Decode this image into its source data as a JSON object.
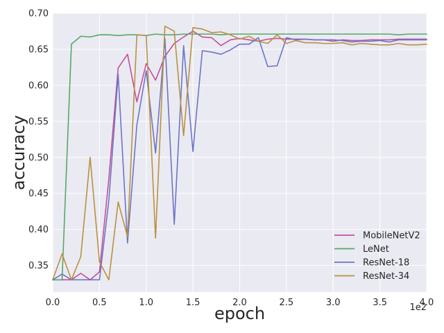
{
  "chart_data": {
    "type": "line",
    "title": "",
    "xlabel": "epoch",
    "ylabel": "accuracy",
    "x_offset_label": "1e2",
    "xlim": [
      0,
      4.0
    ],
    "ylim": [
      0.313,
      0.7
    ],
    "xticks": [
      "0.0",
      "0.5",
      "1.0",
      "1.5",
      "2.0",
      "2.5",
      "3.0",
      "3.5",
      "4.0"
    ],
    "yticks": [
      "0.35",
      "0.40",
      "0.45",
      "0.50",
      "0.55",
      "0.60",
      "0.65",
      "0.70"
    ],
    "grid": true,
    "legend_position": "lower-right",
    "x": [
      0.0,
      0.1,
      0.2,
      0.3,
      0.4,
      0.5,
      0.6,
      0.7,
      0.8,
      0.9,
      1.0,
      1.1,
      1.2,
      1.3,
      1.4,
      1.5,
      1.6,
      1.7,
      1.8,
      1.9,
      2.0,
      2.1,
      2.2,
      2.3,
      2.4,
      2.5,
      2.6,
      2.7,
      2.8,
      2.9,
      3.0,
      3.1,
      3.2,
      3.3,
      3.4,
      3.5,
      3.6,
      3.7,
      3.8,
      3.9,
      4.0
    ],
    "series": [
      {
        "name": "MobileNetV2",
        "color": "#c44e9c",
        "values": [
          0.33,
          0.33,
          0.33,
          0.339,
          0.33,
          0.341,
          0.47,
          0.624,
          0.643,
          0.577,
          0.63,
          0.607,
          0.64,
          0.658,
          0.667,
          0.675,
          0.667,
          0.666,
          0.655,
          0.663,
          0.665,
          0.663,
          0.661,
          0.664,
          0.665,
          0.664,
          0.664,
          0.664,
          0.663,
          0.663,
          0.661,
          0.663,
          0.662,
          0.662,
          0.663,
          0.663,
          0.663,
          0.664,
          0.664,
          0.664,
          0.664
        ]
      },
      {
        "name": "LeNet",
        "color": "#55a868",
        "values": [
          0.33,
          0.33,
          0.657,
          0.668,
          0.667,
          0.67,
          0.67,
          0.669,
          0.67,
          0.67,
          0.669,
          0.671,
          0.67,
          0.67,
          0.671,
          0.671,
          0.671,
          0.671,
          0.67,
          0.671,
          0.671,
          0.671,
          0.671,
          0.671,
          0.671,
          0.671,
          0.671,
          0.671,
          0.671,
          0.671,
          0.671,
          0.671,
          0.671,
          0.671,
          0.671,
          0.671,
          0.671,
          0.67,
          0.671,
          0.671,
          0.671
        ]
      },
      {
        "name": "ResNet-18",
        "color": "#6c74c8",
        "values": [
          0.33,
          0.338,
          0.33,
          0.33,
          0.33,
          0.33,
          0.44,
          0.615,
          0.381,
          0.545,
          0.62,
          0.506,
          0.665,
          0.407,
          0.655,
          0.508,
          0.648,
          0.646,
          0.643,
          0.649,
          0.657,
          0.657,
          0.666,
          0.626,
          0.627,
          0.666,
          0.663,
          0.664,
          0.663,
          0.663,
          0.663,
          0.662,
          0.66,
          0.661,
          0.661,
          0.662,
          0.66,
          0.663,
          0.663,
          0.663,
          0.663
        ]
      },
      {
        "name": "ResNet-34",
        "color": "#b8913f",
        "values": [
          0.33,
          0.366,
          0.33,
          0.362,
          0.5,
          0.355,
          0.33,
          0.438,
          0.39,
          0.67,
          0.669,
          0.388,
          0.682,
          0.675,
          0.53,
          0.68,
          0.678,
          0.673,
          0.674,
          0.67,
          0.664,
          0.668,
          0.661,
          0.658,
          0.67,
          0.658,
          0.662,
          0.659,
          0.659,
          0.658,
          0.658,
          0.659,
          0.656,
          0.658,
          0.657,
          0.656,
          0.656,
          0.658,
          0.656,
          0.656,
          0.657
        ]
      }
    ]
  }
}
